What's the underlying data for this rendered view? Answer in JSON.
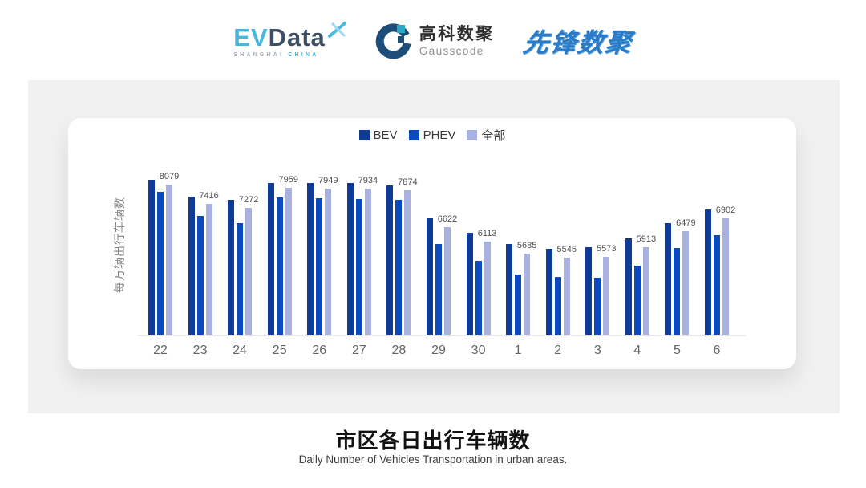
{
  "header": {
    "evdata": {
      "ev": "EV",
      "data": "Data",
      "sub_left": "SHANGHAI",
      "sub_right": "CHINA"
    },
    "gausscode": {
      "name_cn": "高科数聚",
      "name_en": "Gausscode"
    },
    "pioneer": {
      "name": "先锋数聚"
    }
  },
  "chart_data": {
    "type": "bar",
    "title": "市区各日出行车辆数",
    "ylabel": "每万辆出行车辆数",
    "categories": [
      "22",
      "23",
      "24",
      "25",
      "26",
      "27",
      "28",
      "29",
      "30",
      "1",
      "2",
      "3",
      "4",
      "5",
      "6"
    ],
    "series": [
      {
        "name": "BEV",
        "color": "#0d3b96",
        "values": [
          8240,
          7650,
          7540,
          8130,
          8130,
          8130,
          8040,
          6910,
          6430,
          6020,
          5850,
          5920,
          6220,
          6760,
          7210
        ]
      },
      {
        "name": "PHEV",
        "color": "#0a49c0",
        "values": [
          7830,
          6990,
          6750,
          7630,
          7620,
          7570,
          7540,
          6040,
          5460,
          4980,
          4890,
          4870,
          5270,
          5880,
          6330
        ]
      },
      {
        "name": "全部",
        "color": "#a9b1de",
        "values": [
          8079,
          7416,
          7272,
          7959,
          7949,
          7934,
          7874,
          6622,
          6113,
          5685,
          5545,
          5573,
          5913,
          6479,
          6902
        ]
      }
    ],
    "data_labels": [
      8079,
      7416,
      7272,
      7959,
      7949,
      7934,
      7874,
      6622,
      6113,
      5685,
      5545,
      5573,
      5913,
      6479,
      6902
    ],
    "label_series_index": 2,
    "ylim": [
      2900,
      8300
    ],
    "legend_position": "top",
    "grid": false
  },
  "footer": {
    "title": "市区各日出行车辆数",
    "subtitle": "Daily Number of Vehicles Transportation in urban areas."
  }
}
